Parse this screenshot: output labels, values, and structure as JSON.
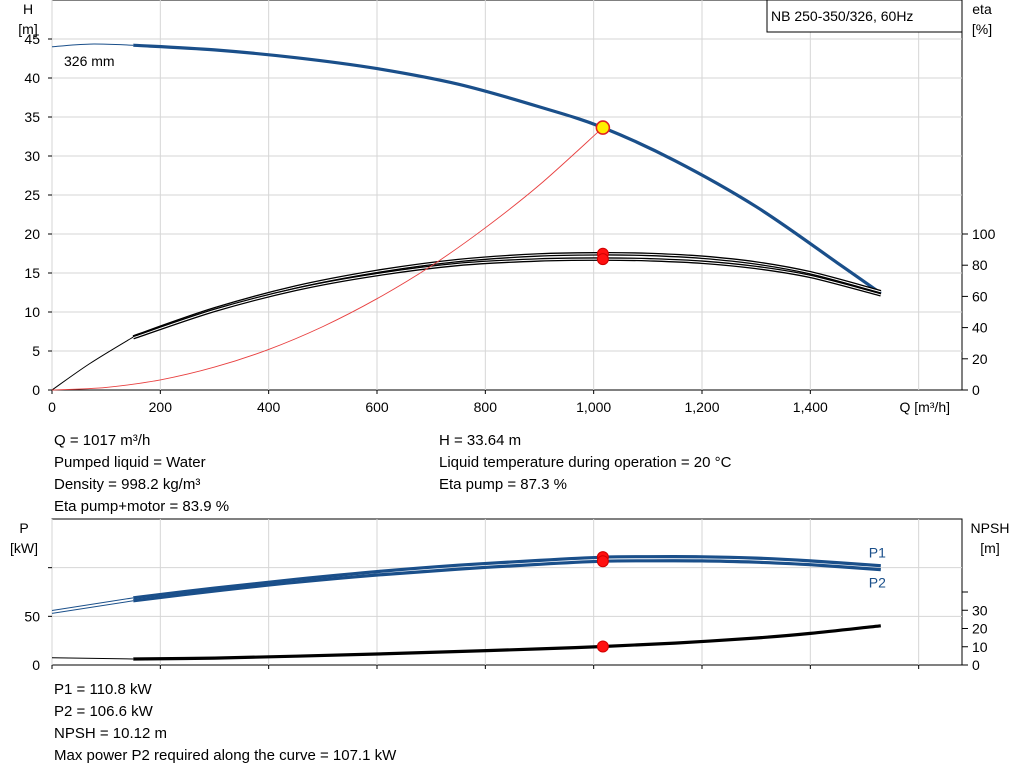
{
  "chart_data": [
    {
      "type": "line",
      "title": "NB 250-350/326, 60Hz",
      "xlabel": "Q [m³/h]",
      "ylabel_left_name": "H",
      "ylabel_left_unit": "[m]",
      "ylabel_right_name": "eta",
      "ylabel_right_unit": "[%]",
      "xlim": [
        0,
        1680
      ],
      "ylim_left": [
        0,
        50
      ],
      "ylim_right": [
        0,
        250
      ],
      "x_ticks": [
        "0",
        "200",
        "400",
        "600",
        "800",
        "1,000",
        "1,200",
        "1,400"
      ],
      "y_ticks_left": [
        "0",
        "5",
        "10",
        "15",
        "20",
        "25",
        "30",
        "35",
        "40",
        "45"
      ],
      "y_ticks_right": [
        "0",
        "20",
        "40",
        "60",
        "80",
        "100"
      ],
      "grid": true,
      "curve_label": "326 mm",
      "series": [
        {
          "name": "H",
          "axis": "left",
          "color": "#1a4f8a",
          "x": [
            150,
            300,
            450,
            600,
            750,
            900,
            1017,
            1150,
            1300,
            1450,
            1530
          ],
          "y": [
            44.2,
            43.6,
            42.6,
            41.2,
            39.2,
            36.3,
            33.64,
            29.4,
            23.5,
            16.3,
            12.4
          ]
        },
        {
          "name": "Eta pump",
          "axis": "right",
          "color": "#000000",
          "x": [
            150,
            300,
            450,
            600,
            750,
            900,
            1017,
            1100,
            1200,
            1300,
            1400,
            1530
          ],
          "y": [
            34,
            52,
            66,
            76,
            83,
            86.6,
            87.3,
            86.9,
            85.1,
            81.4,
            75.1,
            63
          ]
        },
        {
          "name": "Eta pump+motor",
          "axis": "right",
          "color": "#000000",
          "x": [
            150,
            300,
            450,
            600,
            750,
            900,
            1017,
            1100,
            1200,
            1300,
            1400,
            1530
          ],
          "y": [
            33.5,
            51,
            64.5,
            74,
            80.5,
            83.4,
            83.9,
            83.5,
            81.9,
            78.5,
            72.8,
            61
          ]
        },
        {
          "name": "System curve",
          "axis": "left",
          "color": "#e84040",
          "x": [
            0,
            100,
            200,
            300,
            400,
            500,
            600,
            700,
            800,
            900,
            1017
          ],
          "y": [
            0,
            0.33,
            1.3,
            2.93,
            5.2,
            8.13,
            11.7,
            15.9,
            20.8,
            26.3,
            33.64
          ]
        }
      ],
      "duty_point": {
        "x": 1017,
        "y": 33.64
      }
    },
    {
      "type": "line",
      "ylabel_left_name": "P",
      "ylabel_left_unit": "[kW]",
      "ylabel_right_name": "NPSH",
      "ylabel_right_unit": "[m]",
      "xlim": [
        0,
        1680
      ],
      "ylim_left": [
        0,
        150
      ],
      "ylim_right": [
        0,
        80
      ],
      "y_ticks_left": [
        "0",
        "50"
      ],
      "y_ticks_right": [
        "0",
        "10",
        "20",
        "30"
      ],
      "grid": true,
      "series": [
        {
          "name": "P1",
          "axis": "left",
          "color": "#1a4f8a",
          "x": [
            150,
            300,
            450,
            600,
            750,
            900,
            1017,
            1100,
            1200,
            1300,
            1400,
            1530
          ],
          "y": [
            69,
            79,
            88,
            96,
            102.5,
            107.5,
            110.8,
            111.3,
            111.2,
            109.8,
            107,
            102
          ]
        },
        {
          "name": "P2",
          "axis": "left",
          "color": "#1a4f8a",
          "x": [
            150,
            300,
            450,
            600,
            750,
            900,
            1017,
            1100,
            1200,
            1300,
            1400,
            1530
          ],
          "y": [
            66,
            76,
            85,
            92.5,
            98.5,
            103.5,
            106.6,
            107.1,
            107,
            105.6,
            103,
            98
          ]
        },
        {
          "name": "NPSH",
          "axis": "right",
          "color": "#000000",
          "x": [
            150,
            300,
            450,
            600,
            750,
            900,
            1017,
            1150,
            1300,
            1400,
            1530
          ],
          "y": [
            3.3,
            3.8,
            4.8,
            6.0,
            7.4,
            8.8,
            10.12,
            12,
            14.8,
            17.3,
            21.5
          ]
        }
      ],
      "operating_markers": {
        "x": 1017,
        "p1": 110.8,
        "p2": 106.6,
        "npsh": 10.12
      }
    }
  ],
  "info_top_left": [
    "Q = 1017 m³/h",
    "Pumped liquid = Water",
    "Density = 998.2 kg/m³",
    "Eta pump+motor = 83.9 %"
  ],
  "info_top_right": [
    "H = 33.64 m",
    "Liquid temperature during operation = 20 °C",
    "Eta pump = 87.3 %"
  ],
  "info_bottom": [
    "P1 = 110.8 kW",
    "P2 = 106.6 kW",
    "NPSH = 10.12 m",
    "Max power P2 required along the curve = 107.1 kW"
  ]
}
